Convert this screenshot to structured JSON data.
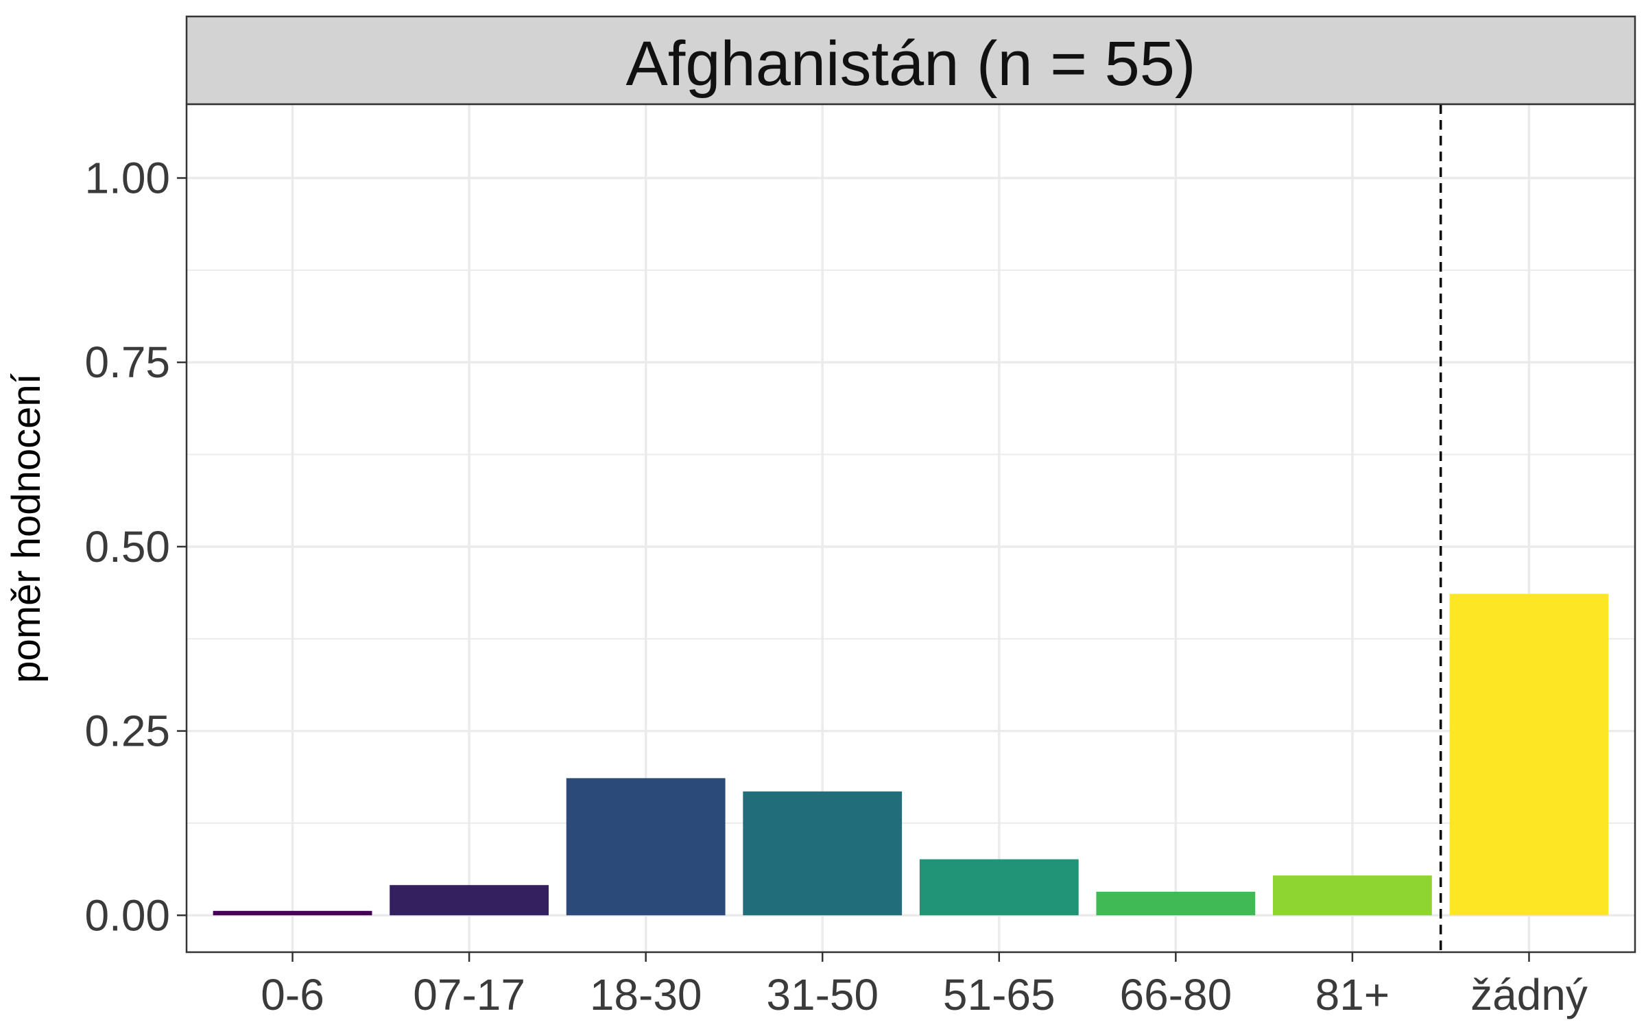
{
  "chart_data": {
    "type": "bar",
    "title": "Afghanistán (n = 55)",
    "xlabel": "",
    "ylabel": "poměr hodnocení",
    "categories": [
      "0-6",
      "07-17",
      "18-30",
      "31-50",
      "51-65",
      "66-80",
      "81+",
      "žádný"
    ],
    "values": [
      0.006,
      0.041,
      0.186,
      0.168,
      0.076,
      0.032,
      0.054,
      0.436
    ],
    "colors": [
      "#440154",
      "#35205f",
      "#2b4a7a",
      "#216e7a",
      "#219476",
      "#3fba55",
      "#8fd531",
      "#fde725"
    ],
    "ylim": [
      -0.05,
      1.1
    ],
    "yticks": [
      0,
      0.25,
      0.5,
      0.75,
      1
    ],
    "ytick_labels": [
      "0.00",
      "0.25",
      "0.50",
      "0.75",
      "1.00"
    ],
    "grid": true,
    "reference_line": {
      "between_categories": [
        "81+",
        "žádný"
      ],
      "style": "dashed"
    },
    "legend": "none"
  },
  "colors": {
    "strip_bg": "#d3d3d3",
    "grid": "#ebebeb",
    "frame": "#333333"
  }
}
